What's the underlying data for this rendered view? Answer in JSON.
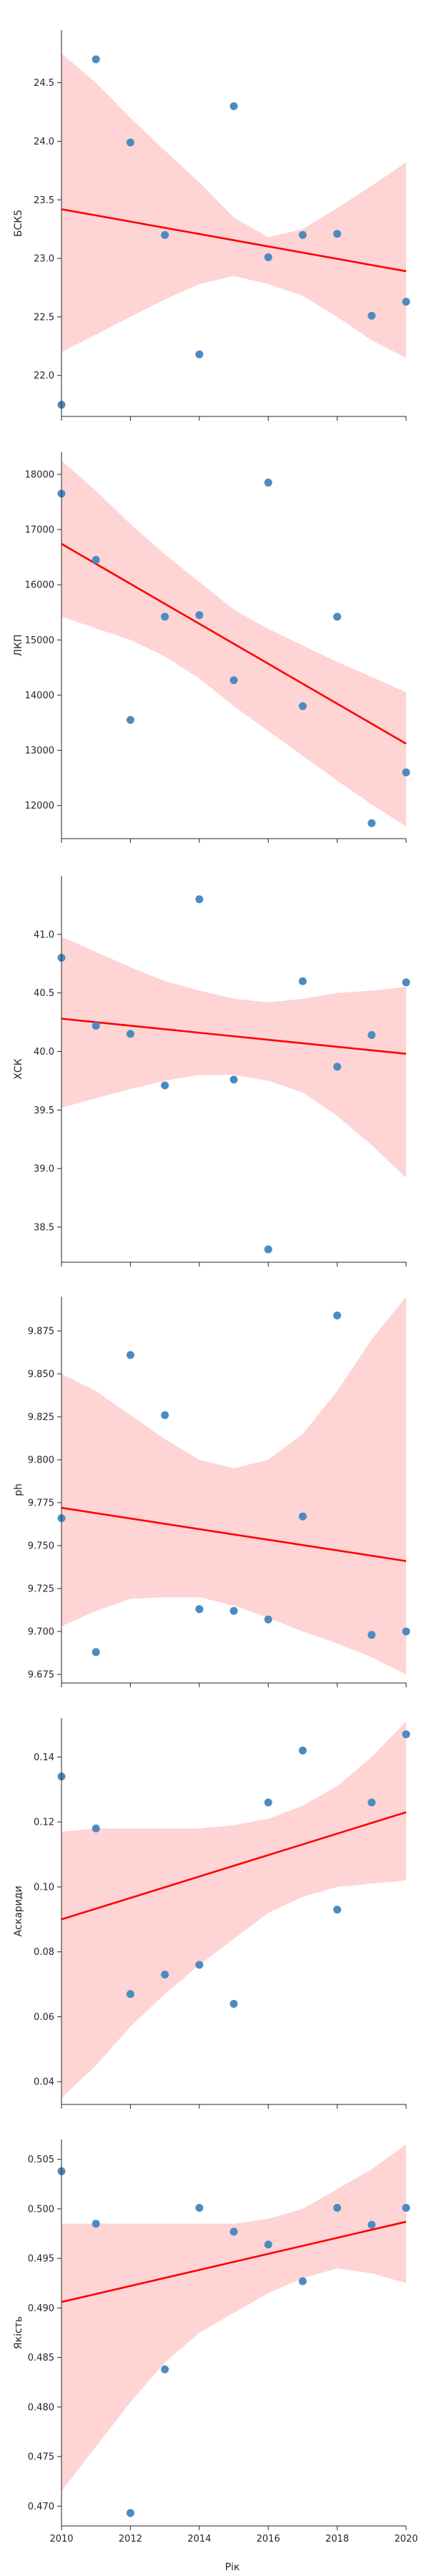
{
  "figure": {
    "xlabel": "Рік",
    "colors": {
      "point": "#4c8bc0",
      "fit_line": "#ff0000",
      "band": "#ffcccc",
      "axis": "#262626"
    }
  },
  "chart_data": [
    {
      "type": "scatter",
      "ylabel": "БСК5",
      "xlim": [
        2010,
        2020
      ],
      "ylim": [
        21.65,
        24.95
      ],
      "yticks": [
        "22.0",
        "22.5",
        "23.0",
        "23.5",
        "24.0",
        "24.5"
      ],
      "x": [
        2010,
        2011,
        2012,
        2013,
        2014,
        2015,
        2016,
        2017,
        2018,
        2019,
        2020
      ],
      "y": [
        21.75,
        24.7,
        23.99,
        23.2,
        22.18,
        24.3,
        23.01,
        23.2,
        23.21,
        22.51,
        22.63
      ],
      "fit": [
        [
          2010,
          23.42
        ],
        [
          2020,
          22.89
        ]
      ],
      "band_upper": [
        [
          2010,
          24.75
        ],
        [
          2011,
          24.5
        ],
        [
          2012,
          24.2
        ],
        [
          2013,
          23.92
        ],
        [
          2014,
          23.65
        ],
        [
          2015,
          23.35
        ],
        [
          2016,
          23.18
        ],
        [
          2017,
          23.25
        ],
        [
          2018,
          23.43
        ],
        [
          2019,
          23.62
        ],
        [
          2020,
          23.82
        ]
      ],
      "band_lower": [
        [
          2010,
          22.2
        ],
        [
          2011,
          22.35
        ],
        [
          2012,
          22.5
        ],
        [
          2013,
          22.65
        ],
        [
          2014,
          22.78
        ],
        [
          2015,
          22.85
        ],
        [
          2016,
          22.78
        ],
        [
          2017,
          22.68
        ],
        [
          2018,
          22.5
        ],
        [
          2019,
          22.3
        ],
        [
          2020,
          22.15
        ]
      ]
    },
    {
      "type": "scatter",
      "ylabel": "ЛКП",
      "xlim": [
        2010,
        2020
      ],
      "ylim": [
        11400,
        18400
      ],
      "yticks": [
        "12000",
        "13000",
        "14000",
        "15000",
        "16000",
        "17000",
        "18000"
      ],
      "x": [
        2010,
        2011,
        2012,
        2013,
        2014,
        2015,
        2016,
        2017,
        2018,
        2019,
        2020
      ],
      "y": [
        17650,
        16450,
        13550,
        15420,
        15450,
        14270,
        17850,
        13800,
        15420,
        11680,
        12600
      ],
      "fit": [
        [
          2010,
          16740
        ],
        [
          2020,
          13120
        ]
      ],
      "band_upper": [
        [
          2010,
          18250
        ],
        [
          2011,
          17700
        ],
        [
          2012,
          17100
        ],
        [
          2013,
          16550
        ],
        [
          2014,
          16050
        ],
        [
          2015,
          15550
        ],
        [
          2016,
          15200
        ],
        [
          2017,
          14900
        ],
        [
          2018,
          14600
        ],
        [
          2019,
          14330
        ],
        [
          2020,
          14050
        ]
      ],
      "band_lower": [
        [
          2010,
          15420
        ],
        [
          2011,
          15210
        ],
        [
          2012,
          15000
        ],
        [
          2013,
          14700
        ],
        [
          2014,
          14300
        ],
        [
          2015,
          13800
        ],
        [
          2016,
          13350
        ],
        [
          2017,
          12900
        ],
        [
          2018,
          12450
        ],
        [
          2019,
          12020
        ],
        [
          2020,
          11620
        ]
      ]
    },
    {
      "type": "scatter",
      "ylabel": "ХСК",
      "xlim": [
        2010,
        2020
      ],
      "ylim": [
        38.2,
        41.5
      ],
      "yticks": [
        "38.5",
        "39.0",
        "39.5",
        "40.0",
        "40.5",
        "41.0"
      ],
      "x": [
        2010,
        2011,
        2012,
        2013,
        2014,
        2015,
        2016,
        2017,
        2018,
        2019,
        2020
      ],
      "y": [
        40.8,
        40.22,
        40.15,
        39.71,
        41.3,
        39.76,
        38.31,
        40.6,
        39.87,
        40.14,
        40.59
      ],
      "fit": [
        [
          2010,
          40.28
        ],
        [
          2020,
          39.98
        ]
      ],
      "band_upper": [
        [
          2010,
          40.98
        ],
        [
          2011,
          40.85
        ],
        [
          2012,
          40.72
        ],
        [
          2013,
          40.6
        ],
        [
          2014,
          40.52
        ],
        [
          2015,
          40.45
        ],
        [
          2016,
          40.42
        ],
        [
          2017,
          40.45
        ],
        [
          2018,
          40.5
        ],
        [
          2019,
          40.52
        ],
        [
          2020,
          40.55
        ]
      ],
      "band_lower": [
        [
          2010,
          39.52
        ],
        [
          2011,
          39.6
        ],
        [
          2012,
          39.68
        ],
        [
          2013,
          39.75
        ],
        [
          2014,
          39.8
        ],
        [
          2015,
          39.8
        ],
        [
          2016,
          39.75
        ],
        [
          2017,
          39.65
        ],
        [
          2018,
          39.45
        ],
        [
          2019,
          39.2
        ],
        [
          2020,
          38.92
        ]
      ]
    },
    {
      "type": "scatter",
      "ylabel": "ph",
      "xlim": [
        2010,
        2020
      ],
      "ylim": [
        9.67,
        9.895
      ],
      "yticks": [
        "9.675",
        "9.700",
        "9.725",
        "9.750",
        "9.775",
        "9.800",
        "9.825",
        "9.850",
        "9.875"
      ],
      "x": [
        2010,
        2011,
        2012,
        2013,
        2014,
        2015,
        2016,
        2017,
        2018,
        2019,
        2020
      ],
      "y": [
        9.766,
        9.688,
        9.861,
        9.826,
        9.713,
        9.712,
        9.707,
        9.767,
        9.884,
        9.698,
        9.7
      ],
      "fit": [
        [
          2010,
          9.772
        ],
        [
          2020,
          9.741
        ]
      ],
      "band_upper": [
        [
          2010,
          9.85
        ],
        [
          2011,
          9.84
        ],
        [
          2012,
          9.826
        ],
        [
          2013,
          9.812
        ],
        [
          2014,
          9.8
        ],
        [
          2015,
          9.795
        ],
        [
          2016,
          9.8
        ],
        [
          2017,
          9.815
        ],
        [
          2018,
          9.84
        ],
        [
          2019,
          9.87
        ],
        [
          2020,
          9.895
        ]
      ],
      "band_lower": [
        [
          2010,
          9.703
        ],
        [
          2011,
          9.712
        ],
        [
          2012,
          9.719
        ],
        [
          2013,
          9.72
        ],
        [
          2014,
          9.72
        ],
        [
          2015,
          9.715
        ],
        [
          2016,
          9.708
        ],
        [
          2017,
          9.7
        ],
        [
          2018,
          9.693
        ],
        [
          2019,
          9.685
        ],
        [
          2020,
          9.675
        ]
      ]
    },
    {
      "type": "scatter",
      "ylabel": "Аскариди",
      "xlim": [
        2010,
        2020
      ],
      "ylim": [
        0.033,
        0.152
      ],
      "yticks": [
        "0.04",
        "0.06",
        "0.08",
        "0.10",
        "0.12",
        "0.14"
      ],
      "x": [
        2010,
        2011,
        2012,
        2013,
        2014,
        2015,
        2016,
        2017,
        2018,
        2019,
        2020
      ],
      "y": [
        0.134,
        0.118,
        0.067,
        0.073,
        0.076,
        0.064,
        0.126,
        0.142,
        0.093,
        0.126,
        0.147
      ],
      "fit": [
        [
          2010,
          0.09
        ],
        [
          2020,
          0.123
        ]
      ],
      "band_upper": [
        [
          2010,
          0.117
        ],
        [
          2011,
          0.118
        ],
        [
          2012,
          0.118
        ],
        [
          2013,
          0.118
        ],
        [
          2014,
          0.118
        ],
        [
          2015,
          0.119
        ],
        [
          2016,
          0.121
        ],
        [
          2017,
          0.125
        ],
        [
          2018,
          0.131
        ],
        [
          2019,
          0.14
        ],
        [
          2020,
          0.151
        ]
      ],
      "band_lower": [
        [
          2010,
          0.035
        ],
        [
          2011,
          0.045
        ],
        [
          2012,
          0.057
        ],
        [
          2013,
          0.067
        ],
        [
          2014,
          0.076
        ],
        [
          2015,
          0.084
        ],
        [
          2016,
          0.092
        ],
        [
          2017,
          0.097
        ],
        [
          2018,
          0.1
        ],
        [
          2019,
          0.101
        ],
        [
          2020,
          0.102
        ]
      ]
    },
    {
      "type": "scatter",
      "ylabel": "Якість",
      "xlim": [
        2010,
        2020
      ],
      "ylim": [
        0.468,
        0.507
      ],
      "yticks": [
        "0.470",
        "0.475",
        "0.480",
        "0.485",
        "0.490",
        "0.495",
        "0.500",
        "0.505"
      ],
      "x": [
        2010,
        2011,
        2012,
        2013,
        2014,
        2015,
        2016,
        2017,
        2018,
        2019,
        2020
      ],
      "y": [
        0.5038,
        0.4985,
        0.4693,
        0.4838,
        0.5001,
        0.4977,
        0.4964,
        0.4927,
        0.5001,
        0.4984,
        0.5001
      ],
      "fit": [
        [
          2010,
          0.4906
        ],
        [
          2020,
          0.4987
        ]
      ],
      "band_upper": [
        [
          2010,
          0.4985
        ],
        [
          2011,
          0.4985
        ],
        [
          2012,
          0.4985
        ],
        [
          2013,
          0.4985
        ],
        [
          2014,
          0.4985
        ],
        [
          2015,
          0.4985
        ],
        [
          2016,
          0.499
        ],
        [
          2017,
          0.5
        ],
        [
          2018,
          0.502
        ],
        [
          2019,
          0.504
        ],
        [
          2020,
          0.5065
        ]
      ],
      "band_lower": [
        [
          2010,
          0.4715
        ],
        [
          2011,
          0.476
        ],
        [
          2012,
          0.4805
        ],
        [
          2013,
          0.4845
        ],
        [
          2014,
          0.4875
        ],
        [
          2015,
          0.4895
        ],
        [
          2016,
          0.4915
        ],
        [
          2017,
          0.493
        ],
        [
          2018,
          0.494
        ],
        [
          2019,
          0.4935
        ],
        [
          2020,
          0.4925
        ]
      ]
    }
  ]
}
